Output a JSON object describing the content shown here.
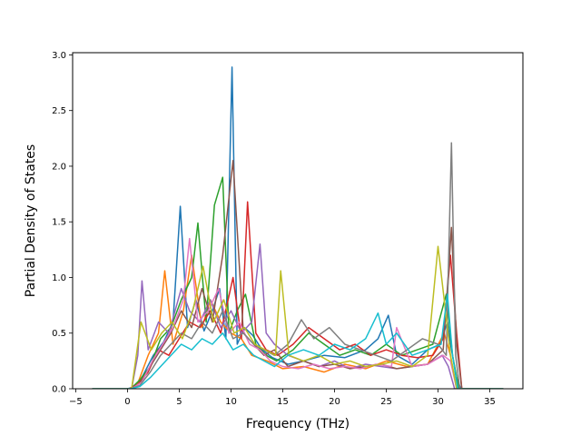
{
  "chart_data": {
    "type": "line",
    "title": "",
    "xlabel": "Frequency (THz)",
    "ylabel": "Partial Density of States",
    "xlim": [
      -5.3,
      38.2
    ],
    "ylim": [
      0.0,
      3.02
    ],
    "xticks": [
      -5,
      0,
      5,
      10,
      15,
      20,
      25,
      30,
      35
    ],
    "yticks": [
      0.0,
      0.5,
      1.0,
      1.5,
      2.0,
      2.5,
      3.0
    ],
    "xtick_labels": [
      "−5",
      "0",
      "5",
      "10",
      "15",
      "20",
      "25",
      "30",
      "35"
    ],
    "ytick_labels": [
      "0.0",
      "0.5",
      "1.0",
      "1.5",
      "2.0",
      "2.5",
      "3.0"
    ],
    "grid": false,
    "legend": "none",
    "colors": [
      "#1f77b4",
      "#ff7f0e",
      "#2ca02c",
      "#d62728",
      "#9467bd",
      "#8c564b",
      "#e377c2",
      "#7f7f7f",
      "#bcbd22",
      "#17becf"
    ],
    "series": [
      {
        "x": [
          -3.4,
          0.0,
          0.8,
          1.5,
          2.5,
          3.5,
          4.4,
          5.1,
          5.8,
          6.6,
          7.4,
          8.2,
          8.9,
          9.5,
          10.1,
          10.6,
          11.3,
          12.1,
          13.0,
          14.0,
          15.5,
          17.0,
          19.0,
          21.0,
          23.0,
          24.2,
          25.2,
          26.0,
          27.5,
          29.0,
          30.2,
          30.9,
          31.3,
          31.8,
          32.2,
          36.3
        ],
        "values": [
          0.0,
          0.0,
          0.02,
          0.12,
          0.3,
          0.42,
          0.6,
          1.64,
          0.55,
          0.8,
          0.52,
          0.7,
          0.9,
          0.45,
          2.89,
          0.4,
          0.55,
          0.48,
          0.35,
          0.28,
          0.22,
          0.25,
          0.3,
          0.28,
          0.35,
          0.45,
          0.66,
          0.3,
          0.22,
          0.35,
          0.4,
          0.6,
          0.35,
          0.1,
          0.0,
          0.0
        ]
      },
      {
        "x": [
          -3.4,
          0.2,
          1.0,
          2.0,
          3.0,
          3.6,
          4.4,
          5.4,
          6.2,
          7.2,
          8.0,
          9.0,
          10.0,
          11.0,
          12.0,
          13.5,
          15.0,
          17.0,
          19.0,
          21.0,
          23.0,
          25.0,
          27.0,
          29.0,
          30.6,
          31.2,
          31.8,
          36.3
        ],
        "values": [
          0.0,
          0.0,
          0.05,
          0.3,
          0.5,
          1.06,
          0.4,
          0.7,
          1.2,
          0.55,
          0.8,
          0.6,
          0.5,
          0.45,
          0.3,
          0.25,
          0.18,
          0.2,
          0.15,
          0.22,
          0.18,
          0.25,
          0.2,
          0.22,
          0.5,
          0.3,
          0.0,
          0.0
        ]
      },
      {
        "x": [
          -3.4,
          0.3,
          1.2,
          2.2,
          3.2,
          4.2,
          5.2,
          6.2,
          6.8,
          7.6,
          8.4,
          9.2,
          9.8,
          10.6,
          11.4,
          12.4,
          13.4,
          14.4,
          16.0,
          17.5,
          19.0,
          20.5,
          22.0,
          23.5,
          25.0,
          26.5,
          28.0,
          29.5,
          30.8,
          31.4,
          32.0,
          36.3
        ],
        "values": [
          0.0,
          0.0,
          0.08,
          0.2,
          0.45,
          0.55,
          0.8,
          1.0,
          1.49,
          0.6,
          1.65,
          1.9,
          0.5,
          0.7,
          0.85,
          0.4,
          0.3,
          0.25,
          0.35,
          0.5,
          0.4,
          0.3,
          0.35,
          0.3,
          0.4,
          0.3,
          0.35,
          0.4,
          0.85,
          0.3,
          0.0,
          0.0
        ]
      },
      {
        "x": [
          -3.4,
          0.2,
          1.0,
          2.0,
          3.0,
          4.0,
          5.0,
          6.0,
          7.0,
          8.0,
          9.0,
          10.2,
          11.0,
          11.6,
          12.4,
          13.4,
          14.5,
          16.0,
          17.5,
          19.0,
          20.5,
          22.0,
          23.5,
          25.0,
          26.5,
          28.0,
          29.5,
          30.5,
          31.2,
          31.8,
          32.3,
          36.3
        ],
        "values": [
          0.0,
          0.0,
          0.04,
          0.15,
          0.35,
          0.3,
          0.45,
          0.6,
          0.55,
          0.7,
          0.5,
          1.0,
          0.45,
          1.68,
          0.5,
          0.35,
          0.3,
          0.4,
          0.55,
          0.45,
          0.35,
          0.4,
          0.3,
          0.35,
          0.3,
          0.28,
          0.3,
          0.45,
          1.2,
          0.5,
          0.0,
          0.0
        ]
      },
      {
        "x": [
          -3.4,
          0.4,
          1.0,
          1.4,
          2.0,
          3.0,
          4.0,
          5.2,
          6.0,
          7.0,
          8.0,
          9.0,
          10.0,
          11.0,
          12.0,
          12.8,
          13.4,
          14.2,
          15.5,
          17.0,
          18.5,
          20.0,
          21.5,
          23.0,
          24.5,
          26.0,
          27.5,
          29.0,
          30.4,
          31.0,
          31.6,
          36.3
        ],
        "values": [
          0.0,
          0.0,
          0.3,
          0.97,
          0.35,
          0.6,
          0.5,
          0.9,
          0.7,
          0.6,
          0.8,
          0.55,
          0.7,
          0.5,
          0.6,
          1.3,
          0.5,
          0.4,
          0.3,
          0.25,
          0.2,
          0.25,
          0.18,
          0.22,
          0.2,
          0.18,
          0.2,
          0.22,
          0.3,
          0.2,
          0.0,
          0.0
        ]
      },
      {
        "x": [
          -3.4,
          0.3,
          1.2,
          2.2,
          3.2,
          4.2,
          5.2,
          6.2,
          7.2,
          8.2,
          9.2,
          10.2,
          11.2,
          12.2,
          13.2,
          14.2,
          15.5,
          17.0,
          18.5,
          20.0,
          21.5,
          23.0,
          24.5,
          26.0,
          27.5,
          29.0,
          30.5,
          31.3,
          31.8,
          32.3,
          36.3
        ],
        "values": [
          0.0,
          0.0,
          0.05,
          0.2,
          0.35,
          0.5,
          0.7,
          0.55,
          0.9,
          0.6,
          1.2,
          2.05,
          0.5,
          0.4,
          0.3,
          0.35,
          0.2,
          0.25,
          0.2,
          0.22,
          0.18,
          0.2,
          0.22,
          0.18,
          0.2,
          0.22,
          0.35,
          1.45,
          0.4,
          0.0,
          0.0
        ]
      },
      {
        "x": [
          -3.4,
          0.4,
          1.4,
          2.4,
          3.4,
          4.4,
          5.4,
          6.0,
          6.8,
          7.8,
          8.8,
          9.8,
          10.8,
          11.8,
          12.8,
          13.8,
          15.0,
          16.5,
          18.0,
          19.5,
          21.0,
          22.5,
          24.0,
          25.5,
          26.0,
          27.5,
          29.0,
          30.5,
          31.2,
          31.8,
          36.3
        ],
        "values": [
          0.0,
          0.0,
          0.06,
          0.25,
          0.4,
          0.55,
          0.8,
          1.35,
          0.6,
          0.7,
          0.9,
          0.5,
          0.6,
          0.4,
          0.35,
          0.25,
          0.2,
          0.18,
          0.22,
          0.18,
          0.2,
          0.18,
          0.22,
          0.2,
          0.55,
          0.2,
          0.22,
          0.3,
          0.25,
          0.0,
          0.0
        ]
      },
      {
        "x": [
          -3.4,
          0.3,
          1.2,
          2.2,
          3.2,
          4.2,
          5.2,
          6.2,
          7.2,
          8.2,
          9.2,
          10.2,
          11.2,
          12.2,
          13.2,
          14.2,
          15.5,
          16.8,
          18.0,
          19.5,
          21.0,
          22.5,
          24.0,
          25.5,
          27.0,
          28.5,
          30.0,
          30.8,
          31.3,
          31.7,
          32.1,
          36.3
        ],
        "values": [
          0.0,
          0.0,
          0.03,
          0.15,
          0.3,
          0.4,
          0.5,
          0.45,
          0.6,
          0.5,
          0.7,
          0.45,
          0.5,
          0.4,
          0.35,
          0.3,
          0.4,
          0.62,
          0.45,
          0.55,
          0.4,
          0.35,
          0.3,
          0.25,
          0.35,
          0.45,
          0.4,
          0.3,
          2.21,
          0.3,
          0.0,
          0.0
        ]
      },
      {
        "x": [
          -3.4,
          0.4,
          1.3,
          2.3,
          3.3,
          4.3,
          5.3,
          6.3,
          7.3,
          8.3,
          9.3,
          10.3,
          11.3,
          12.3,
          13.3,
          14.3,
          14.8,
          15.6,
          17.0,
          18.5,
          20.0,
          21.5,
          23.0,
          24.5,
          26.0,
          27.5,
          29.0,
          30.0,
          30.6,
          31.2,
          31.8,
          36.3
        ],
        "values": [
          0.0,
          0.0,
          0.6,
          0.35,
          0.5,
          0.6,
          0.45,
          0.7,
          1.1,
          0.6,
          0.8,
          0.5,
          0.55,
          0.4,
          0.35,
          0.3,
          1.06,
          0.3,
          0.25,
          0.3,
          0.22,
          0.25,
          0.2,
          0.22,
          0.25,
          0.2,
          0.3,
          1.28,
          0.8,
          0.3,
          0.0,
          0.0
        ]
      },
      {
        "x": [
          -3.4,
          0.3,
          1.2,
          2.2,
          3.2,
          4.2,
          5.2,
          6.2,
          7.2,
          8.2,
          9.2,
          10.2,
          11.2,
          12.2,
          13.2,
          14.2,
          15.5,
          17.0,
          18.5,
          20.0,
          21.5,
          23.0,
          24.2,
          25.0,
          26.0,
          27.5,
          29.0,
          30.3,
          30.9,
          31.4,
          31.9,
          36.3
        ],
        "values": [
          0.0,
          0.0,
          0.02,
          0.1,
          0.2,
          0.3,
          0.4,
          0.35,
          0.45,
          0.4,
          0.5,
          0.35,
          0.4,
          0.3,
          0.25,
          0.2,
          0.3,
          0.35,
          0.3,
          0.4,
          0.35,
          0.45,
          0.68,
          0.4,
          0.5,
          0.3,
          0.35,
          0.4,
          0.85,
          0.3,
          0.0,
          0.0
        ]
      }
    ]
  }
}
